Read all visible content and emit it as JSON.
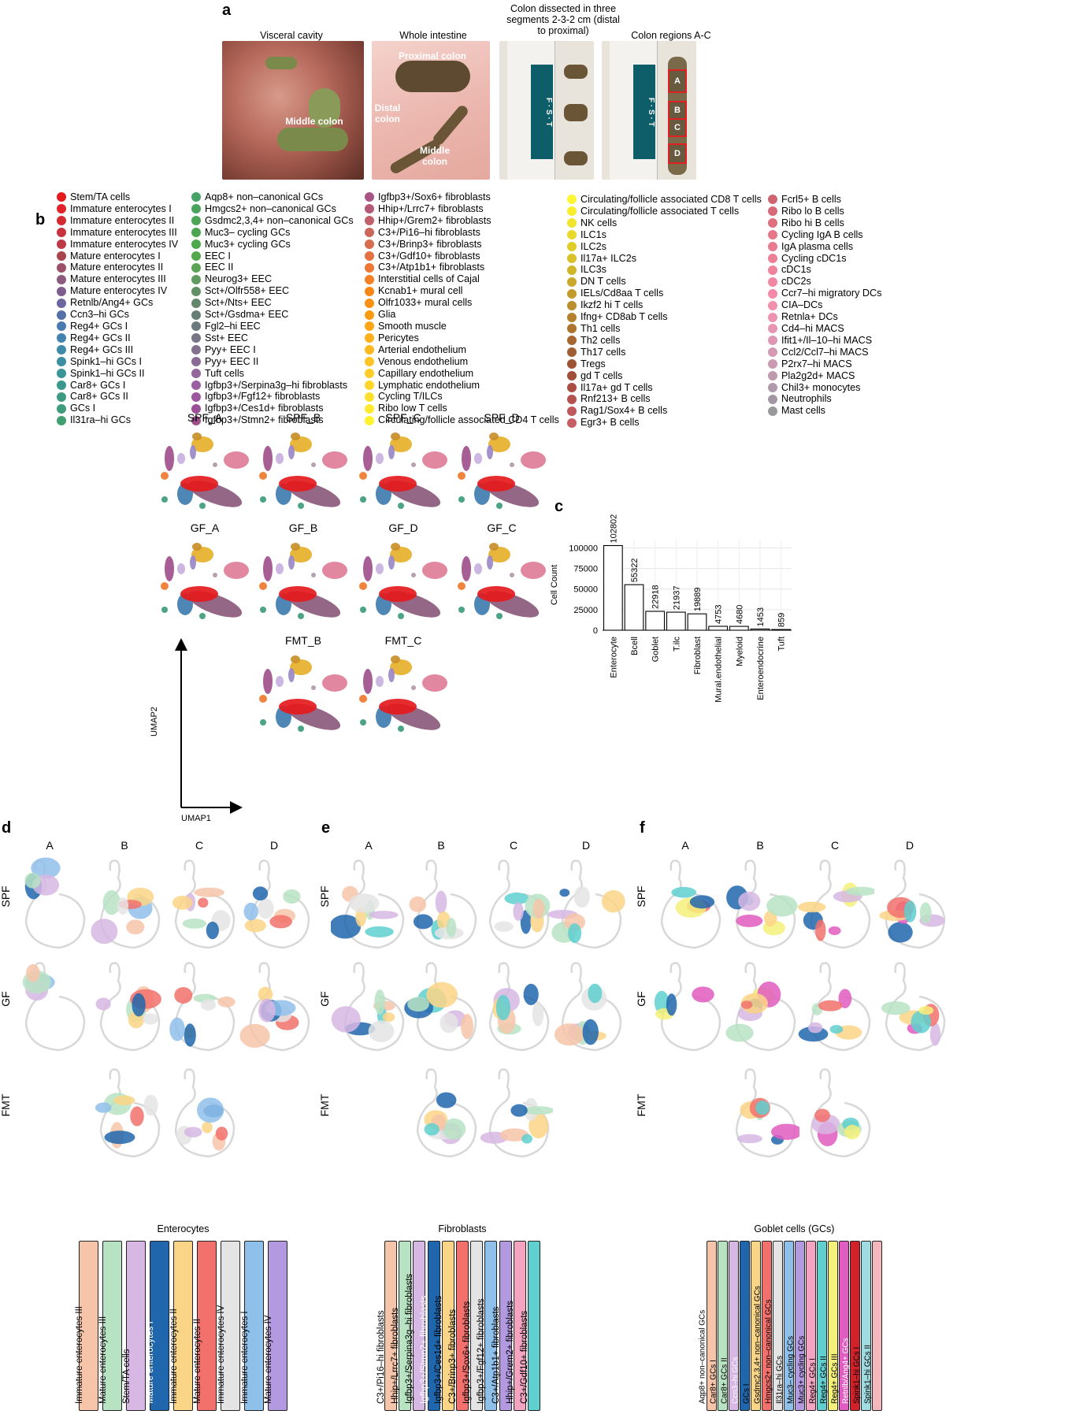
{
  "panel_labels": {
    "a": "a",
    "b": "b",
    "c": "c",
    "d": "d",
    "e": "e",
    "f": "f"
  },
  "panel_a": {
    "captions": [
      "Visceral cavity",
      "Whole intestine",
      "Colon dissected in three segments 2-3-2 cm (distal to proximal)",
      "Colon regions A-C"
    ],
    "photo1_label": "Middle colon",
    "photo2_labels": [
      "Proximal colon",
      "Distal colon",
      "Middle colon"
    ],
    "ruler_brand": "F · S · T",
    "region_boxes": [
      "A",
      "B",
      "C",
      "D"
    ]
  },
  "panel_b": {
    "columns": [
      [
        {
          "label": "Stem/TA cells",
          "color": "#e41a1c"
        },
        {
          "label": "Immature enterocytes I",
          "color": "#e0222a"
        },
        {
          "label": "Immature enterocytes II",
          "color": "#d42a33"
        },
        {
          "label": "Immature enterocytes III",
          "color": "#c8323e"
        },
        {
          "label": "Immature enterocytes IV",
          "color": "#bc3a48"
        },
        {
          "label": "Mature enterocytes I",
          "color": "#a8444f"
        },
        {
          "label": "Mature enterocytes II",
          "color": "#9a5068"
        },
        {
          "label": "Mature enterocytes III",
          "color": "#8c5a7c"
        },
        {
          "label": "Mature enterocytes IV",
          "color": "#7e5d8e"
        },
        {
          "label": "Retnlb/Ang4+ GCs",
          "color": "#6a66a0"
        },
        {
          "label": "Ccn3–hi GCs",
          "color": "#5570a8"
        },
        {
          "label": "Reg4+ GCs I",
          "color": "#4a7bb0"
        },
        {
          "label": "Reg4+ GCs II",
          "color": "#4483b0"
        },
        {
          "label": "Reg4+ GCs III",
          "color": "#3f8aa8"
        },
        {
          "label": "Spink1–hi GCs I",
          "color": "#3b8fa0"
        },
        {
          "label": "Spink1–hi GCs II",
          "color": "#3a9496"
        },
        {
          "label": "Car8+ GCs I",
          "color": "#3a988c"
        },
        {
          "label": "Car8+ GCs II",
          "color": "#3c9a83"
        },
        {
          "label": "GCs I",
          "color": "#3e9c7a"
        },
        {
          "label": "Il31ra–hi GCs",
          "color": "#419e70"
        }
      ],
      [
        {
          "label": "Aqp8+ non–canonical GCs",
          "color": "#45a166"
        },
        {
          "label": "Hmgcs2+ non–canonical GCs",
          "color": "#48a35e"
        },
        {
          "label": "Gsdmc2,3,4+ non–canonical GCs",
          "color": "#4aa556"
        },
        {
          "label": "Muc3– cycling GCs",
          "color": "#4ca650"
        },
        {
          "label": "Muc3+ cycling GCs",
          "color": "#4da74b"
        },
        {
          "label": "EEC I",
          "color": "#53a74c"
        },
        {
          "label": "EEC II",
          "color": "#5ba255"
        },
        {
          "label": "Neurog3+ EEC",
          "color": "#5f9a5e"
        },
        {
          "label": "Sct+/Olfr558+ EEC",
          "color": "#619066"
        },
        {
          "label": "Sct+/Nts+ EEC",
          "color": "#63866d"
        },
        {
          "label": "Sct+/Gsdma+ EEC",
          "color": "#667e74"
        },
        {
          "label": "Fgl2–hi EEC",
          "color": "#6d7a7d"
        },
        {
          "label": "Sst+ EEC",
          "color": "#787587"
        },
        {
          "label": "Pyy+ EEC I",
          "color": "#82708f"
        },
        {
          "label": "Pyy+ EEC II",
          "color": "#8b6b96"
        },
        {
          "label": "Tuft cells",
          "color": "#93669c"
        },
        {
          "label": "Igfbp3+/Serpina3g–hi fibroblasts",
          "color": "#9a5fa0"
        },
        {
          "label": "Igfbp3+/Fgf12+ fibroblasts",
          "color": "#9b569c"
        },
        {
          "label": "Igfbp3+/Ces1d+ fibroblasts",
          "color": "#9b4f96"
        },
        {
          "label": "Igfbp3+/Stmn2+ fibroblasts",
          "color": "#9e4f8c"
        }
      ],
      [
        {
          "label": "Igfbp3+/Sox6+ fibroblasts",
          "color": "#a85484"
        },
        {
          "label": "Hhip+/Lrrc7+ fibroblasts",
          "color": "#b45a78"
        },
        {
          "label": "Hhip+/Grem2+ fibroblasts",
          "color": "#c0606a"
        },
        {
          "label": "C3+/Pi16–hi fibroblasts",
          "color": "#cc665c"
        },
        {
          "label": "C3+/Brinp3+ fibroblasts",
          "color": "#d86c4e"
        },
        {
          "label": "C3+/Gdf10+ fibroblasts",
          "color": "#e47240"
        },
        {
          "label": "C3+/Atp1b1+ fibroblasts",
          "color": "#ee7733"
        },
        {
          "label": "Interstitial cells of Cajal",
          "color": "#f57f22"
        },
        {
          "label": "Kcnab1+ mural cell",
          "color": "#f88714"
        },
        {
          "label": "Olfr1033+ mural cells",
          "color": "#fa9112"
        },
        {
          "label": "Glia",
          "color": "#fb9b14"
        },
        {
          "label": "Smooth muscle",
          "color": "#fca518"
        },
        {
          "label": "Pericytes",
          "color": "#fdaf1c"
        },
        {
          "label": "Arterial endothelium",
          "color": "#feb920"
        },
        {
          "label": "Venous endothelium",
          "color": "#fec324"
        },
        {
          "label": "Capillary endothelium",
          "color": "#fecd27"
        },
        {
          "label": "Lymphatic endothelium",
          "color": "#fed62a"
        },
        {
          "label": "Cycling T/ILCs",
          "color": "#fee02c"
        },
        {
          "label": "Ribo low T cells",
          "color": "#feea2e"
        },
        {
          "label": "Circulating/follicle associated CD4 T cells",
          "color": "#fff22f"
        }
      ],
      [
        {
          "label": "Circulating/follicle associated CD8 T cells",
          "color": "#fff633"
        },
        {
          "label": "Circulating/follicle associated T cells",
          "color": "#f8ee2e"
        },
        {
          "label": "NK cells",
          "color": "#f0e42c"
        },
        {
          "label": "ILC1s",
          "color": "#e8d92b"
        },
        {
          "label": "ILC2s",
          "color": "#e0cd2a"
        },
        {
          "label": "Il17a+ ILC2s",
          "color": "#d8c12a"
        },
        {
          "label": "ILC3s",
          "color": "#d0b52a"
        },
        {
          "label": "DN T cells",
          "color": "#c9a82b"
        },
        {
          "label": "IELs/Cd8aa T cells",
          "color": "#c29b2c"
        },
        {
          "label": "Ikzf2 hi T cells",
          "color": "#bb8e2d"
        },
        {
          "label": "Ifng+ CD8ab T cells",
          "color": "#b4812e"
        },
        {
          "label": "Th1 cells",
          "color": "#ad742f"
        },
        {
          "label": "Th2 cells",
          "color": "#a66830"
        },
        {
          "label": "Th17 cells",
          "color": "#a05d31"
        },
        {
          "label": "Tregs",
          "color": "#9c5333"
        },
        {
          "label": "gd T cells",
          "color": "#a04e3a"
        },
        {
          "label": "Il17a+ gd T cells",
          "color": "#aa4e44"
        },
        {
          "label": "Rnf213+ B cells",
          "color": "#b4524f"
        },
        {
          "label": "Rag1/Sox4+ B cells",
          "color": "#be585a"
        },
        {
          "label": "Egr3+ B cells",
          "color": "#c75e66"
        }
      ],
      [
        {
          "label": "Fcrl5+ B cells",
          "color": "#d0646f"
        },
        {
          "label": "Ribo lo B cells",
          "color": "#d86a78"
        },
        {
          "label": "Ribo hi B cells",
          "color": "#e07080"
        },
        {
          "label": "Cycling IgA B cells",
          "color": "#e67688"
        },
        {
          "label": "IgA plasma cells",
          "color": "#ea7a8f"
        },
        {
          "label": "Cycling cDC1s",
          "color": "#ee7e96"
        },
        {
          "label": "cDC1s",
          "color": "#f1839c"
        },
        {
          "label": "cDC2s",
          "color": "#f387a2"
        },
        {
          "label": "Ccr7–hi migratory DCs",
          "color": "#f38ba8"
        },
        {
          "label": "CIA–DCs",
          "color": "#f28fad"
        },
        {
          "label": "Retnla+ DCs",
          "color": "#ed92b0"
        },
        {
          "label": "Cd4–hi MACS",
          "color": "#e695b2"
        },
        {
          "label": "Ifit1+/Il–10–hi MACS",
          "color": "#dd97b3"
        },
        {
          "label": "Ccl2/Ccl7–hi MACS",
          "color": "#d499b3"
        },
        {
          "label": "P2rx7–hi MACS",
          "color": "#c99ab1"
        },
        {
          "label": "Pla2g2d+ MACS",
          "color": "#bd9aae"
        },
        {
          "label": "Chil3+ monocytes",
          "color": "#b099aa"
        },
        {
          "label": "Neutrophils",
          "color": "#a397a5"
        },
        {
          "label": "Mast cells",
          "color": "#99989c"
        }
      ]
    ],
    "umap_titles": [
      "SPF_A",
      "SPF_B",
      "SPF_C",
      "SPF_D",
      "GF_A",
      "GF_B",
      "GF_D",
      "GF_C",
      "FMT_B",
      "FMT_C"
    ],
    "axis_x": "UMAP1",
    "axis_y": "UMAP2"
  },
  "chart_data": {
    "type": "bar",
    "categories": [
      "Enterocyte",
      "Bcell",
      "Goblet",
      "T.ilc",
      "Fibroblast",
      "Mural.endothelial",
      "Myeloid",
      "Enteroendocrine",
      "Tuft"
    ],
    "values": [
      102802,
      55322,
      22918,
      21937,
      19889,
      4753,
      4680,
      1453,
      859
    ],
    "data_labels": [
      "102802",
      "55322",
      "22918",
      "21937",
      "19889",
      "4753",
      "4680",
      "1453",
      "859"
    ],
    "ylabel": "Cell Count",
    "xlabel": "",
    "ylim": [
      0,
      110000
    ],
    "yticks": [
      0,
      25000,
      50000,
      75000,
      100000
    ],
    "ytick_labels": [
      "0",
      "25000",
      "50000",
      "75000",
      "100000"
    ],
    "grid": true
  },
  "spatial": {
    "col_headers": [
      "A",
      "B",
      "C",
      "D"
    ],
    "row_labels": [
      "SPF",
      "GF",
      "FMT"
    ]
  },
  "keys": {
    "d": {
      "title": "Enterocytes",
      "items": [
        {
          "label": "Immature enterocytes III",
          "color": "#f6c4a8"
        },
        {
          "label": "Mature enterocytes III",
          "color": "#b8e3c3"
        },
        {
          "label": "Stem/TA cells",
          "color": "#d7b7e4"
        },
        {
          "label": "Mature enterocytes I",
          "color": "#2066ad"
        },
        {
          "label": "Immature enterocytes II",
          "color": "#fbd587"
        },
        {
          "label": "Mature enterocytes II",
          "color": "#f2716c"
        },
        {
          "label": "Immature enterocytes IV",
          "color": "#e4e4e4"
        },
        {
          "label": "Immature enterocytes I",
          "color": "#8fc0ea"
        },
        {
          "label": "Mature enterocytes IV",
          "color": "#b39ae0"
        }
      ]
    },
    "e": {
      "title": "Fibroblasts",
      "items": [
        {
          "label": "C3+/Pi16–hi fibroblasts",
          "color": "#f6c4a8"
        },
        {
          "label": "Hhip+/Lrrc7+ fibroblasts",
          "color": "#b8e3c3"
        },
        {
          "label": "Igfbp3+/Serpina3g–hi fibroblasts",
          "color": "#d7b7e4"
        },
        {
          "label": "Igfbp3+/Stmn2+ fibroblasts",
          "color": "#2066ad"
        },
        {
          "label": "Igfbp3+/Ces1d+ fibroblasts",
          "color": "#fbd587"
        },
        {
          "label": "C3+/Brinp3+ fibroblasts",
          "color": "#f2716c"
        },
        {
          "label": "Igfbp3+/Sox6+ fibroblasts",
          "color": "#e4e4e4"
        },
        {
          "label": "Igfbp3+/Fgf12+ fibroblasts",
          "color": "#8fc0ea"
        },
        {
          "label": "C3+/Atp1b1+ fibroblasts",
          "color": "#b39ae0"
        },
        {
          "label": "Hhip+/Grem2+ fibroblasts",
          "color": "#f4a4c1"
        },
        {
          "label": "C3+/Gdf10+ fibroblasts",
          "color": "#5fcfcf"
        }
      ]
    },
    "f": {
      "title": "Goblet cells (GCs)",
      "items": [
        {
          "label": "Aqp8+ non–canonical GCs",
          "color": "#f6c4a8"
        },
        {
          "label": "Car8+ GCs I",
          "color": "#b8e3c3"
        },
        {
          "label": "Car8+ GCs II",
          "color": "#d7b7e4"
        },
        {
          "label": "Ccn3–hi GCs",
          "color": "#2066ad"
        },
        {
          "label": "GCs I",
          "color": "#fbd587"
        },
        {
          "label": "Gsdmc2,3,4+ non–canonical GCs",
          "color": "#f2716c"
        },
        {
          "label": "Hmgcs2+ non–canonical GCs",
          "color": "#e4e4e4"
        },
        {
          "label": "Il31ra–hi GCs",
          "color": "#8fc0ea"
        },
        {
          "label": "Muc3– cycling GCs",
          "color": "#b39ae0"
        },
        {
          "label": "Muc3+ cycling GCs",
          "color": "#f4a4c1"
        },
        {
          "label": "Reg4+ GCs I",
          "color": "#5fcfcf"
        },
        {
          "label": "Reg4+ GCs II",
          "color": "#f5f07a"
        },
        {
          "label": "Reg4+ GCs III",
          "color": "#e05cc0"
        },
        {
          "label": "Retnlb/Ang4+ GCs",
          "color": "#d1222b"
        },
        {
          "label": "Spink1–hi GCs I",
          "color": "#9fdbe0"
        },
        {
          "label": "Spink1–hi GCs II",
          "color": "#f2b8bc"
        }
      ]
    }
  }
}
